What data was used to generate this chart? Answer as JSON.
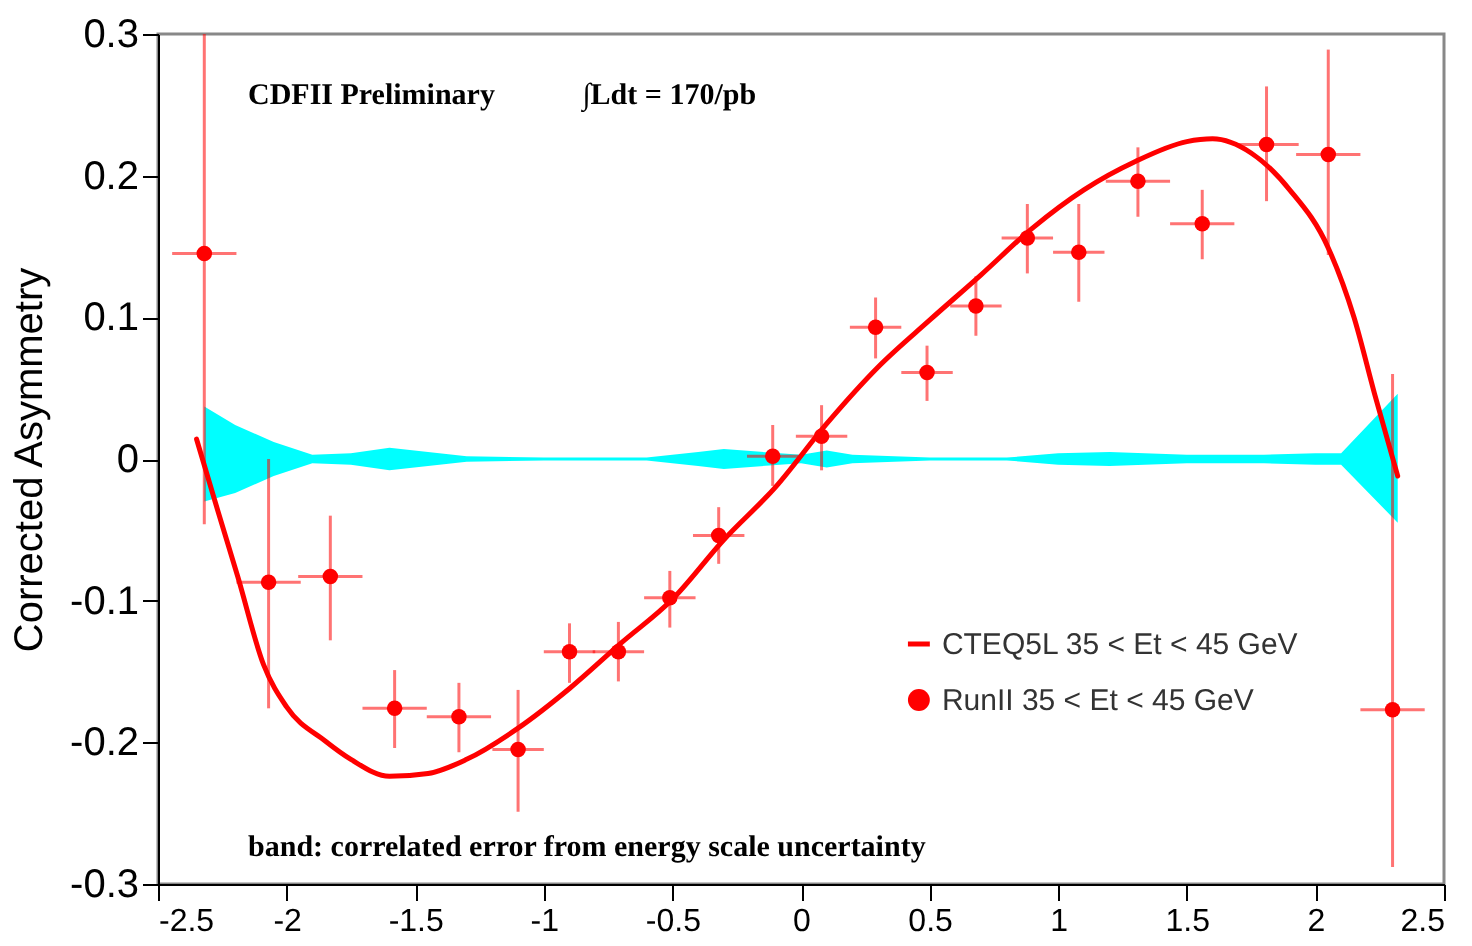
{
  "chart_data": {
    "type": "scatter",
    "ylabel": "Corrected Asymmetry",
    "annotations": [
      "CDFII Preliminary",
      "∫Ldt = 170/pb",
      "band: correlated error from energy scale uncertainty"
    ],
    "xlim": [
      -2.5,
      2.5
    ],
    "xticks": [
      -2.5,
      -2,
      -1.5,
      -1,
      -0.5,
      0,
      0.5,
      1,
      1.5,
      2,
      2.5
    ],
    "ylim": [
      -0.3,
      0.3
    ],
    "yticks": [
      -0.3,
      -0.2,
      -0.1,
      0,
      0.1,
      0.2,
      0.3
    ],
    "legend": "bottom right",
    "grid": false,
    "series": [
      {
        "type": "line",
        "color": "#00ffff",
        "x": [
          -2.32,
          -2.2,
          -2.05,
          -1.9,
          -1.75,
          -1.6,
          -1.45,
          -1.3,
          -1.0,
          -0.6,
          -0.4,
          -0.3,
          0.0,
          0.1,
          0.2,
          0.5,
          0.8,
          1.0,
          1.2,
          1.5,
          1.8,
          2.0,
          2.1,
          2.32
        ],
        "values": [
          null,
          null,
          null,
          null,
          null,
          null,
          null,
          null,
          null,
          null,
          null,
          null,
          null,
          null,
          null,
          null,
          null,
          null,
          null,
          null,
          null,
          null,
          null,
          null
        ],
        "upper": [
          0.037,
          0.024,
          0.012,
          0.003,
          0.004,
          0.008,
          0.005,
          0.002,
          0.001,
          0.001,
          0.005,
          0.007,
          0.003,
          0.006,
          0.003,
          0.001,
          0.001,
          0.004,
          0.005,
          0.003,
          0.003,
          0.004,
          0.004,
          0.046
        ],
        "lower": [
          -0.03,
          -0.024,
          -0.012,
          -0.003,
          -0.004,
          -0.008,
          -0.005,
          -0.002,
          -0.001,
          -0.001,
          -0.005,
          -0.007,
          -0.003,
          -0.006,
          -0.003,
          -0.001,
          -0.001,
          -0.004,
          -0.005,
          -0.003,
          -0.003,
          -0.004,
          -0.004,
          -0.045
        ]
      },
      {
        "type": "line",
        "name": "CTEQ5L 35 < Et < 45 GeV",
        "color": "#ff0000",
        "line_style": "solid",
        "x": [
          -2.35,
          -2.27,
          -2.19,
          -2.09,
          -2.0,
          -1.85,
          -1.75,
          -1.6,
          -1.45,
          -1.3,
          -1.1,
          -0.9,
          -0.7,
          -0.5,
          -0.3,
          -0.1,
          0.1,
          0.3,
          0.5,
          0.7,
          0.9,
          1.1,
          1.3,
          1.5,
          1.6,
          1.75,
          1.9,
          2.05,
          2.15,
          2.23,
          2.32
        ],
        "values": [
          0.014,
          -0.035,
          -0.083,
          -0.145,
          -0.175,
          -0.199,
          -0.212,
          -0.224,
          -0.222,
          -0.212,
          -0.19,
          -0.162,
          -0.13,
          -0.099,
          -0.057,
          -0.02,
          0.025,
          0.065,
          0.098,
          0.13,
          0.163,
          0.19,
          0.21,
          0.224,
          0.226,
          0.216,
          0.19,
          0.149,
          0.1,
          0.046,
          -0.012
        ]
      },
      {
        "name": "RunII 35 < Et < 45 GeV",
        "color": "#ff0000",
        "marker": "circle",
        "x": [
          -2.32,
          -2.07,
          -1.83,
          -1.58,
          -1.33,
          -1.1,
          -0.9,
          -0.71,
          -0.51,
          -0.32,
          -0.11,
          0.08,
          0.29,
          0.49,
          0.68,
          0.88,
          1.08,
          1.31,
          1.56,
          1.81,
          2.05,
          2.3
        ],
        "values": [
          0.145,
          -0.087,
          -0.083,
          -0.176,
          -0.182,
          -0.205,
          -0.136,
          -0.136,
          -0.098,
          -0.054,
          0.002,
          0.016,
          0.093,
          0.061,
          0.108,
          0.156,
          0.146,
          0.196,
          0.166,
          0.222,
          0.215,
          -0.177
        ],
        "errors": [
          [
            -0.046,
            0.3
          ],
          [
            -0.176,
            0.0
          ],
          [
            -0.128,
            -0.04
          ],
          [
            -0.204,
            -0.149
          ],
          [
            -0.207,
            -0.158
          ],
          [
            -0.249,
            -0.163
          ],
          [
            -0.158,
            -0.116
          ],
          [
            -0.157,
            -0.115
          ],
          [
            -0.119,
            -0.079
          ],
          [
            -0.074,
            -0.034
          ],
          [
            -0.019,
            0.024
          ],
          [
            -0.008,
            0.038
          ],
          [
            0.071,
            0.114
          ],
          [
            0.041,
            0.08
          ],
          [
            0.087,
            0.129
          ],
          [
            0.131,
            0.18
          ],
          [
            0.111,
            0.18
          ],
          [
            0.171,
            0.22
          ],
          [
            0.141,
            0.19
          ],
          [
            0.182,
            0.263
          ],
          [
            0.144,
            0.289
          ],
          [
            -0.288,
            0.06
          ]
        ],
        "xerrors": [
          0.125,
          0.125,
          0.125,
          0.125,
          0.125,
          0.1,
          0.1,
          0.1,
          0.1,
          0.1,
          0.1,
          0.1,
          0.1,
          0.1,
          0.1,
          0.1,
          0.1,
          0.125,
          0.125,
          0.125,
          0.125,
          0.125
        ]
      }
    ]
  }
}
